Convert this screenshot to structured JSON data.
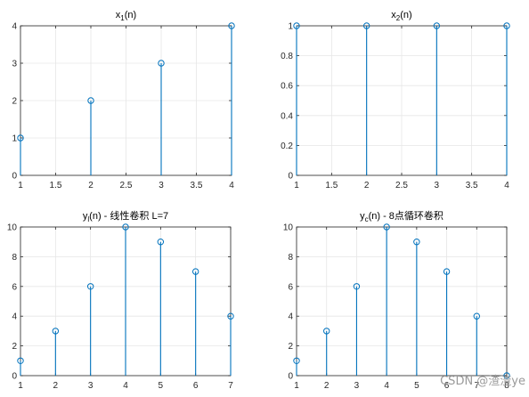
{
  "chart_data": [
    {
      "type": "stem",
      "title": "x",
      "title_sub": "1",
      "title_rest": "(n)",
      "x": [
        1,
        2,
        3,
        4
      ],
      "y": [
        1,
        2,
        3,
        4
      ],
      "xlim": [
        1,
        4
      ],
      "ylim": [
        0,
        4
      ],
      "xticks": [
        "1",
        "1.5",
        "2",
        "2.5",
        "3",
        "3.5",
        "4"
      ],
      "yticks": [
        "0",
        "1",
        "2",
        "3",
        "4"
      ],
      "grid": true,
      "color": "#0072BD"
    },
    {
      "type": "stem",
      "title": "x",
      "title_sub": "2",
      "title_rest": "(n)",
      "x": [
        1,
        2,
        3,
        4
      ],
      "y": [
        1,
        1,
        1,
        1
      ],
      "xlim": [
        1,
        4
      ],
      "ylim": [
        0,
        1
      ],
      "xticks": [
        "1",
        "1.5",
        "2",
        "2.5",
        "3",
        "3.5",
        "4"
      ],
      "yticks": [
        "0",
        "0.2",
        "0.4",
        "0.6",
        "0.8",
        "1"
      ],
      "grid": true,
      "color": "#0072BD"
    },
    {
      "type": "stem",
      "title": "y",
      "title_sub": "l",
      "title_rest": "(n) - 线性卷积 L=7",
      "x": [
        1,
        2,
        3,
        4,
        5,
        6,
        7
      ],
      "y": [
        1,
        3,
        6,
        10,
        9,
        7,
        4
      ],
      "xlim": [
        1,
        7
      ],
      "ylim": [
        0,
        10
      ],
      "xticks": [
        "1",
        "2",
        "3",
        "4",
        "5",
        "6",
        "7"
      ],
      "yticks": [
        "0",
        "2",
        "4",
        "6",
        "8",
        "10"
      ],
      "grid": true,
      "color": "#0072BD"
    },
    {
      "type": "stem",
      "title": "y",
      "title_sub": "c",
      "title_rest": "(n) - 8点循环卷积",
      "x": [
        1,
        2,
        3,
        4,
        5,
        6,
        7,
        8
      ],
      "y": [
        1,
        3,
        6,
        10,
        9,
        7,
        4,
        0
      ],
      "xlim": [
        1,
        8
      ],
      "ylim": [
        0,
        10
      ],
      "xticks": [
        "1",
        "2",
        "3",
        "4",
        "5",
        "6",
        "7",
        "8"
      ],
      "yticks": [
        "0",
        "2",
        "4",
        "6",
        "8",
        "10"
      ],
      "grid": true,
      "color": "#0072BD"
    }
  ],
  "watermark": "CSDN @渣渣ye"
}
